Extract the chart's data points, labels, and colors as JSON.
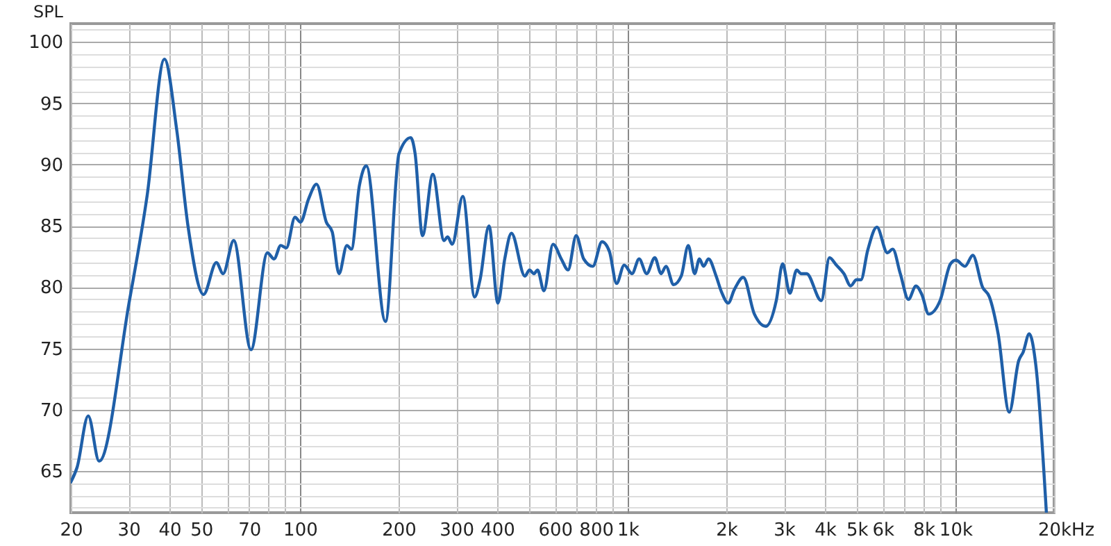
{
  "chart_data": {
    "type": "line",
    "xlabel": "Hz",
    "ylabel": "SPL",
    "log": "x",
    "grid": true,
    "marker": "none",
    "line_style": "solid",
    "xlim": [
      20,
      20000
    ],
    "ylim": [
      61.6,
      101.5
    ],
    "xticks": [
      20,
      30,
      40,
      50,
      {
        "value": 60,
        "label": null
      },
      70,
      {
        "value": 80,
        "label": null
      },
      {
        "value": 90,
        "label": null
      },
      100,
      200,
      300,
      400,
      {
        "value": 500,
        "label": null
      },
      600,
      {
        "value": 700,
        "label": null
      },
      800,
      {
        "value": 900,
        "label": null
      },
      {
        "value": 1000,
        "label": "1k"
      },
      {
        "value": 2000,
        "label": "2k"
      },
      {
        "value": 3000,
        "label": "3k"
      },
      {
        "value": 4000,
        "label": "4k"
      },
      {
        "value": 5000,
        "label": "5k"
      },
      {
        "value": 6000,
        "label": "6k"
      },
      {
        "value": 7000,
        "label": null
      },
      {
        "value": 8000,
        "label": "8k"
      },
      {
        "value": 9000,
        "label": null
      },
      {
        "value": 10000,
        "label": "10k"
      },
      {
        "value": 20000,
        "label": "20k"
      }
    ],
    "yticks": [
      {
        "value": 62,
        "label": null
      },
      {
        "value": 63,
        "label": null
      },
      {
        "value": 64,
        "label": null
      },
      65,
      {
        "value": 66,
        "label": null
      },
      {
        "value": 67,
        "label": null
      },
      {
        "value": 68,
        "label": null
      },
      {
        "value": 69,
        "label": null
      },
      70,
      {
        "value": 71,
        "label": null
      },
      {
        "value": 72,
        "label": null
      },
      {
        "value": 73,
        "label": null
      },
      {
        "value": 74,
        "label": null
      },
      75,
      {
        "value": 76,
        "label": null
      },
      {
        "value": 77,
        "label": null
      },
      {
        "value": 78,
        "label": null
      },
      {
        "value": 79,
        "label": null
      },
      80,
      {
        "value": 81,
        "label": null
      },
      {
        "value": 82,
        "label": null
      },
      {
        "value": 83,
        "label": null
      },
      {
        "value": 84,
        "label": null
      },
      85,
      {
        "value": 86,
        "label": null
      },
      {
        "value": 87,
        "label": null
      },
      {
        "value": 88,
        "label": null
      },
      {
        "value": 89,
        "label": null
      },
      90,
      {
        "value": 91,
        "label": null
      },
      {
        "value": 92,
        "label": null
      },
      {
        "value": 93,
        "label": null
      },
      {
        "value": 94,
        "label": null
      },
      95,
      {
        "value": 96,
        "label": null
      },
      {
        "value": 97,
        "label": null
      },
      {
        "value": 98,
        "label": null
      },
      {
        "value": 99,
        "label": null
      },
      100,
      {
        "value": 101,
        "label": null
      }
    ],
    "series": [
      {
        "color": "#1f5fa8",
        "x": [
          20,
          20.9,
          22.6,
          24.4,
          30.1,
          34.2,
          38.6,
          42.1,
          45.6,
          50.8,
          55.6,
          58.3,
          62.8,
          70.9,
          79.6,
          83.4,
          87.4,
          90.9,
          96.6,
          100.4,
          106.3,
          112.4,
          120.4,
          125.5,
          131.6,
          139.1,
          143.6,
          151.9,
          159.4,
          182.4,
          200.6,
          217.9,
          224.6,
          236.6,
          254.4,
          275.3,
          282.4,
          291.5,
          314.1,
          341.3,
          354.5,
          377.4,
          402,
          421.7,
          442,
          486,
          501.6,
          518,
          531,
          555.3,
          592,
          627.4,
          657.9,
          696.5,
          734.3,
          782.8,
          835,
          880,
          925,
          976,
          1031,
          1084,
          1143,
          1210,
          1265,
          1309,
          1381,
          1457,
          1531,
          1601,
          1656,
          1704,
          1765,
          1862,
          1934,
          2027,
          2116,
          2253,
          2436,
          2640,
          2841,
          2970,
          3126,
          3279,
          3383,
          3515,
          3898,
          4128,
          4331,
          4570,
          4790,
          4990,
          5150,
          5400,
          5760,
          6200,
          6440,
          6790,
          7190,
          7580,
          7900,
          8290,
          8980,
          9660,
          10040,
          10700,
          11300,
          12100,
          12700,
          13500,
          14600,
          15600,
          16100,
          16800,
          17600,
          18950
        ],
        "values": [
          64.1,
          65.3,
          69.5,
          65.8,
          78.7,
          87.5,
          98.6,
          92.8,
          84.9,
          79.4,
          82.0,
          81.1,
          83.8,
          74.9,
          82.8,
          82.3,
          83.4,
          83.2,
          85.7,
          85.3,
          87.2,
          88.4,
          85.3,
          84.5,
          81.1,
          83.4,
          83.1,
          88.3,
          89.9,
          77.2,
          90.9,
          92.2,
          90.9,
          84.2,
          89.2,
          83.8,
          84.1,
          83.5,
          87.4,
          79.2,
          80.6,
          85.0,
          78.7,
          82.3,
          84.4,
          80.9,
          81.4,
          81.1,
          81.4,
          79.7,
          83.5,
          82.3,
          81.4,
          84.2,
          82.3,
          81.7,
          83.7,
          82.9,
          80.3,
          81.8,
          81.1,
          82.3,
          81.1,
          82.4,
          81.1,
          81.7,
          80.2,
          80.9,
          83.4,
          81.1,
          82.3,
          81.7,
          82.3,
          80.9,
          79.6,
          78.7,
          79.8,
          80.8,
          77.8,
          76.8,
          78.9,
          81.9,
          79.5,
          81.4,
          81.1,
          81.1,
          78.9,
          82.4,
          81.8,
          81.1,
          80.1,
          80.6,
          80.6,
          83.0,
          84.9,
          82.8,
          83.1,
          81.1,
          79.0,
          80.1,
          79.4,
          77.8,
          78.9,
          81.9,
          82.2,
          81.7,
          82.6,
          80.0,
          79.2,
          76.2,
          69.8,
          74.0,
          74.7,
          76.2,
          73.6,
          61.6
        ]
      }
    ]
  }
}
